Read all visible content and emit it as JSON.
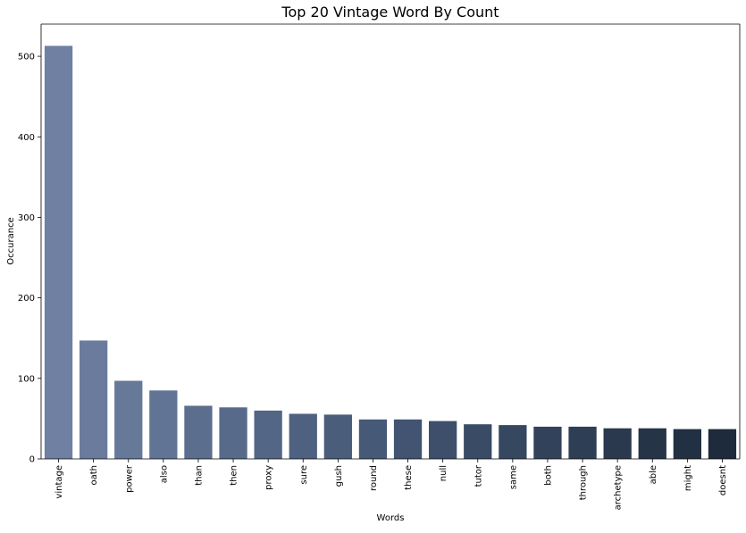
{
  "chart_data": {
    "type": "bar",
    "title": "Top 20 Vintage Word By Count",
    "xlabel": "Words",
    "ylabel": "Occurance",
    "ylim": [
      0,
      540
    ],
    "yticks": [
      0,
      100,
      200,
      300,
      400,
      500
    ],
    "categories": [
      "vintage",
      "oath",
      "power",
      "also",
      "than",
      "then",
      "proxy",
      "sure",
      "gush",
      "round",
      "these",
      "null",
      "tutor",
      "same",
      "both",
      "through",
      "archetype",
      "able",
      "might",
      "doesnt"
    ],
    "values": [
      513,
      147,
      97,
      85,
      66,
      64,
      60,
      56,
      55,
      49,
      49,
      47,
      43,
      42,
      40,
      40,
      38,
      38,
      37,
      37
    ],
    "colors": [
      "#6f80a3",
      "#6a7b9e",
      "#667999",
      "#617495",
      "#5b6e8e",
      "#576a8a",
      "#536686",
      "#4e6181",
      "#4a5d7b",
      "#465977",
      "#425471",
      "#3d4f6b",
      "#3a4b65",
      "#364760",
      "#32425a",
      "#2e3e54",
      "#2a394e",
      "#263448",
      "#223043",
      "#1e2b3c"
    ],
    "grid": false,
    "legend": "none"
  }
}
